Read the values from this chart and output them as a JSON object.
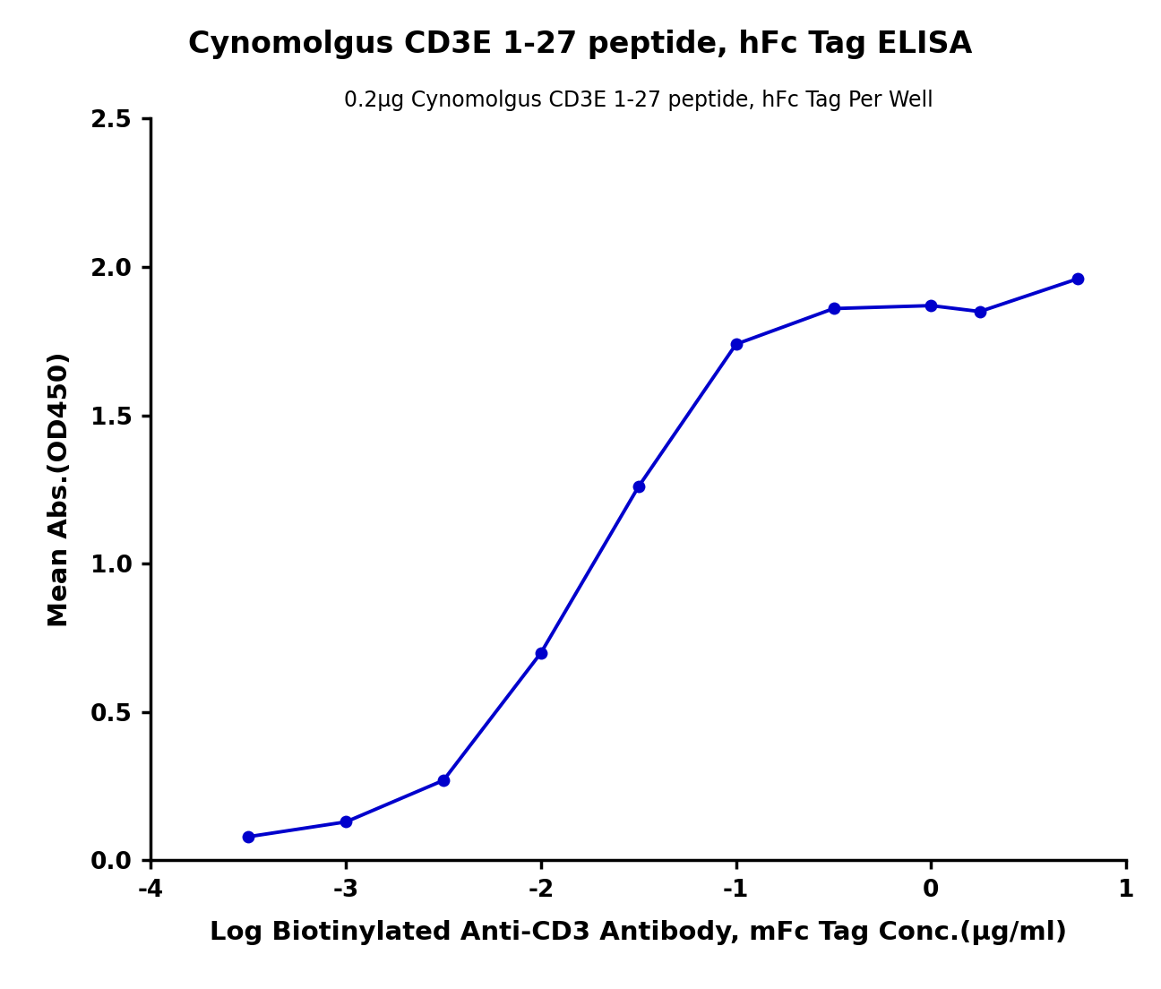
{
  "title": "Cynomolgus CD3E 1-27 peptide, hFc Tag ELISA",
  "subtitle": "0.2μg Cynomolgus CD3E 1-27 peptide, hFc Tag Per Well",
  "xlabel": "Log Biotinylated Anti-CD3 Antibody, mFc Tag Conc.(μg/ml)",
  "ylabel": "Mean Abs.(OD450)",
  "xlim": [
    -4,
    1
  ],
  "ylim": [
    0.0,
    2.5
  ],
  "xticks": [
    -4,
    -3,
    -2,
    -1,
    0,
    1
  ],
  "yticks": [
    0.0,
    0.5,
    1.0,
    1.5,
    2.0,
    2.5
  ],
  "data_x": [
    -3.5,
    -3.0,
    -2.5,
    -2.0,
    -1.5,
    -1.0,
    -0.5,
    0.0,
    0.25,
    0.75
  ],
  "data_y": [
    0.08,
    0.13,
    0.27,
    0.7,
    1.26,
    1.74,
    1.86,
    1.87,
    1.85,
    1.96
  ],
  "line_color": "#0000CC",
  "dot_color": "#0000CC",
  "dot_size": 100,
  "line_width": 2.8,
  "title_fontsize": 24,
  "subtitle_fontsize": 17,
  "axis_label_fontsize": 21,
  "tick_fontsize": 19,
  "background_color": "#ffffff"
}
